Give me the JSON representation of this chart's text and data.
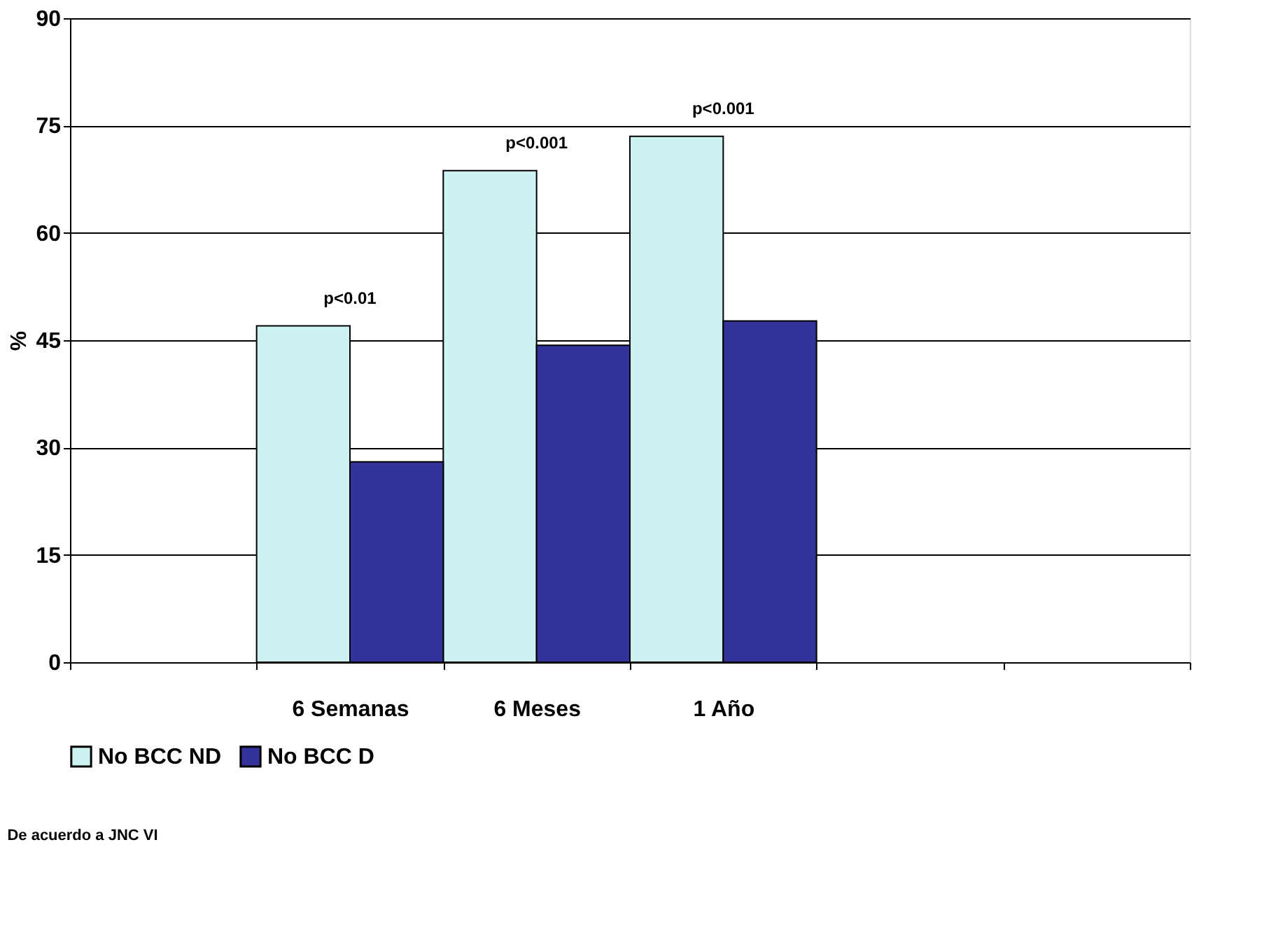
{
  "chart_data": {
    "type": "bar",
    "ylabel": "%",
    "categories": [
      null,
      "6 Semanas",
      "6 Meses",
      "1 Año",
      null,
      null
    ],
    "series": [
      {
        "name": "No BCC ND",
        "color": "#ccf2f2",
        "values": [
          null,
          47,
          68.7,
          73.5,
          null,
          null
        ]
      },
      {
        "name": "No BCC D",
        "color": "#333399",
        "values": [
          null,
          28,
          44.3,
          47.7,
          null,
          null
        ]
      }
    ],
    "ylim": [
      0,
      90
    ],
    "yticks": [
      0,
      15,
      30,
      45,
      60,
      75,
      90
    ],
    "grid": "y",
    "legend": "bottom",
    "annotations": [
      "p<0.01",
      "p<0.001",
      "p<0.001",
      "De acuerdo a JNC VI"
    ]
  }
}
